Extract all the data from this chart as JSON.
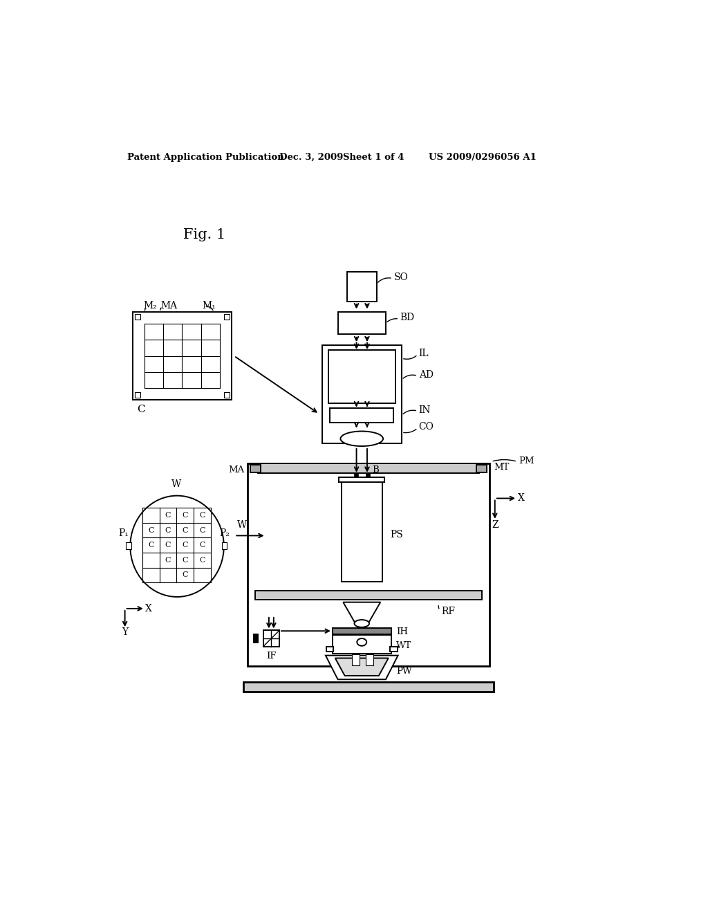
{
  "bg_color": "#ffffff",
  "header_text": "Patent Application Publication",
  "header_date": "Dec. 3, 2009",
  "header_sheet": "Sheet 1 of 4",
  "header_patent": "US 2009/0296056 A1",
  "fig_label": "Fig. 1"
}
